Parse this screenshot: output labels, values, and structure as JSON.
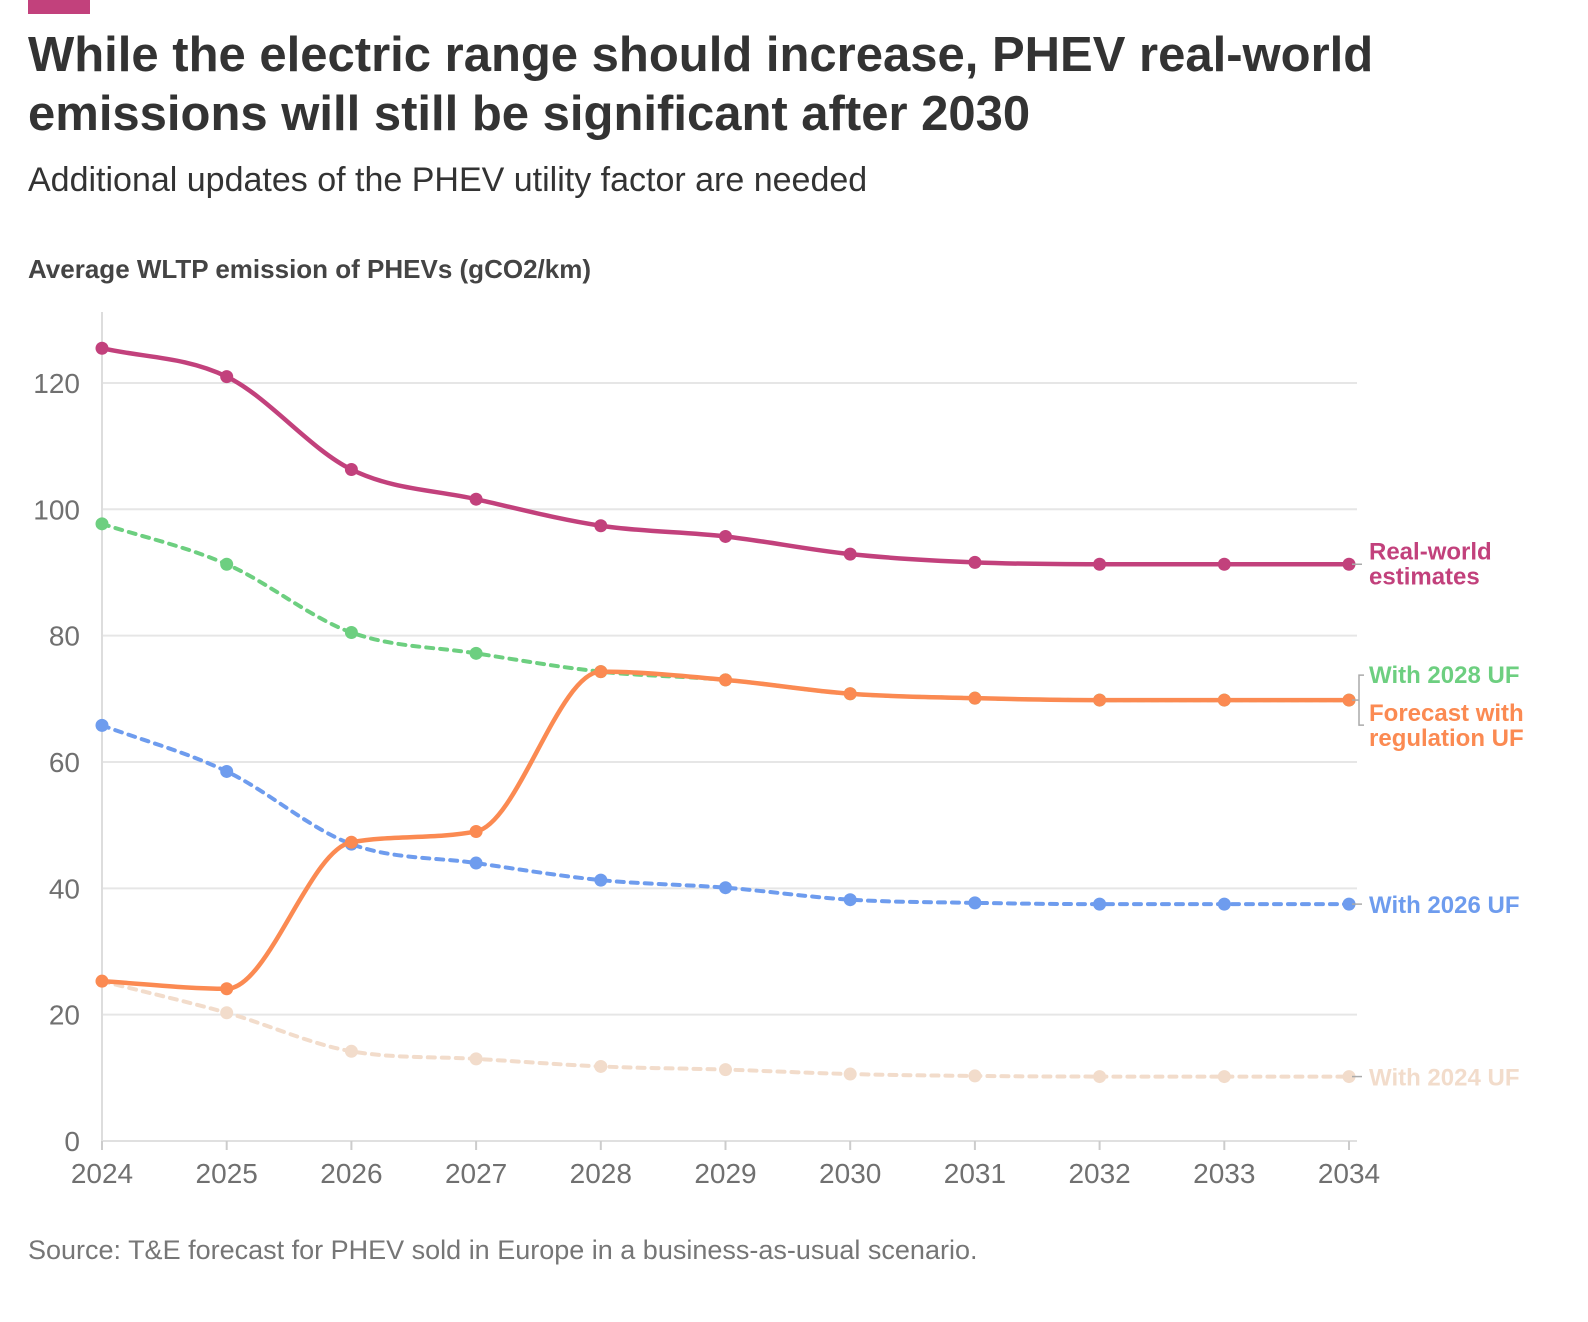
{
  "header": {
    "title": "While the electric range should increase, PHEV real-world emissions will still be significant after 2030",
    "subtitle": "Additional updates of the PHEV utility factor are needed",
    "source": "Source: T&E forecast for PHEV sold in Europe in a business-as-usual scenario.",
    "brand_color": "#c2417c"
  },
  "chart_data": {
    "type": "line",
    "title": "While the electric range should increase, PHEV real-world emissions will still be significant after 2030",
    "subtitle": "Additional updates of the PHEV utility factor are needed",
    "ylabel": "Average WLTP emission of PHEVs (gCO2/km)",
    "xlabel": "",
    "ylim": [
      0,
      130
    ],
    "yticks": [
      "0",
      "20",
      "40",
      "60",
      "80",
      "100",
      "120"
    ],
    "grid": true,
    "x": [
      "2024",
      "2025",
      "2026",
      "2027",
      "2028",
      "2029",
      "2030",
      "2031",
      "2032",
      "2033",
      "2034"
    ],
    "series": [
      {
        "name": "With 2024 UF",
        "label_lines": [
          "With 2024 UF"
        ],
        "color": "#f2dccb",
        "style": "dashed",
        "values": [
          25.3,
          20.3,
          14.2,
          13.0,
          11.8,
          11.3,
          10.6,
          10.3,
          10.2,
          10.2,
          10.2
        ]
      },
      {
        "name": "With 2026 UF",
        "label_lines": [
          "With 2026 UF"
        ],
        "color": "#6e9cee",
        "style": "dashed",
        "values": [
          65.8,
          58.5,
          47.0,
          44.0,
          41.3,
          40.1,
          38.2,
          37.7,
          37.5,
          37.5,
          37.5
        ]
      },
      {
        "name": "With 2028 UF",
        "label_lines": [
          "With 2028 UF"
        ],
        "color": "#6dcf80",
        "style": "dashed",
        "values": [
          97.7,
          91.3,
          80.5,
          77.2,
          74.3,
          73.0,
          70.8,
          70.1,
          69.8,
          69.8,
          69.8
        ]
      },
      {
        "name": "Real-world estimates",
        "label_lines": [
          "Real-world",
          "estimates"
        ],
        "color": "#c2417c",
        "style": "solid",
        "values": [
          125.5,
          121.0,
          106.3,
          101.6,
          97.4,
          95.7,
          92.9,
          91.6,
          91.3,
          91.3,
          91.3
        ]
      },
      {
        "name": "Forecast with regulation UF",
        "label_lines": [
          "Forecast with",
          "regulation UF"
        ],
        "color": "#fb8a52",
        "style": "solid",
        "values": [
          25.3,
          24.1,
          47.3,
          49.0,
          74.3,
          73.0,
          70.8,
          70.1,
          69.8,
          69.8,
          69.8
        ]
      }
    ]
  }
}
